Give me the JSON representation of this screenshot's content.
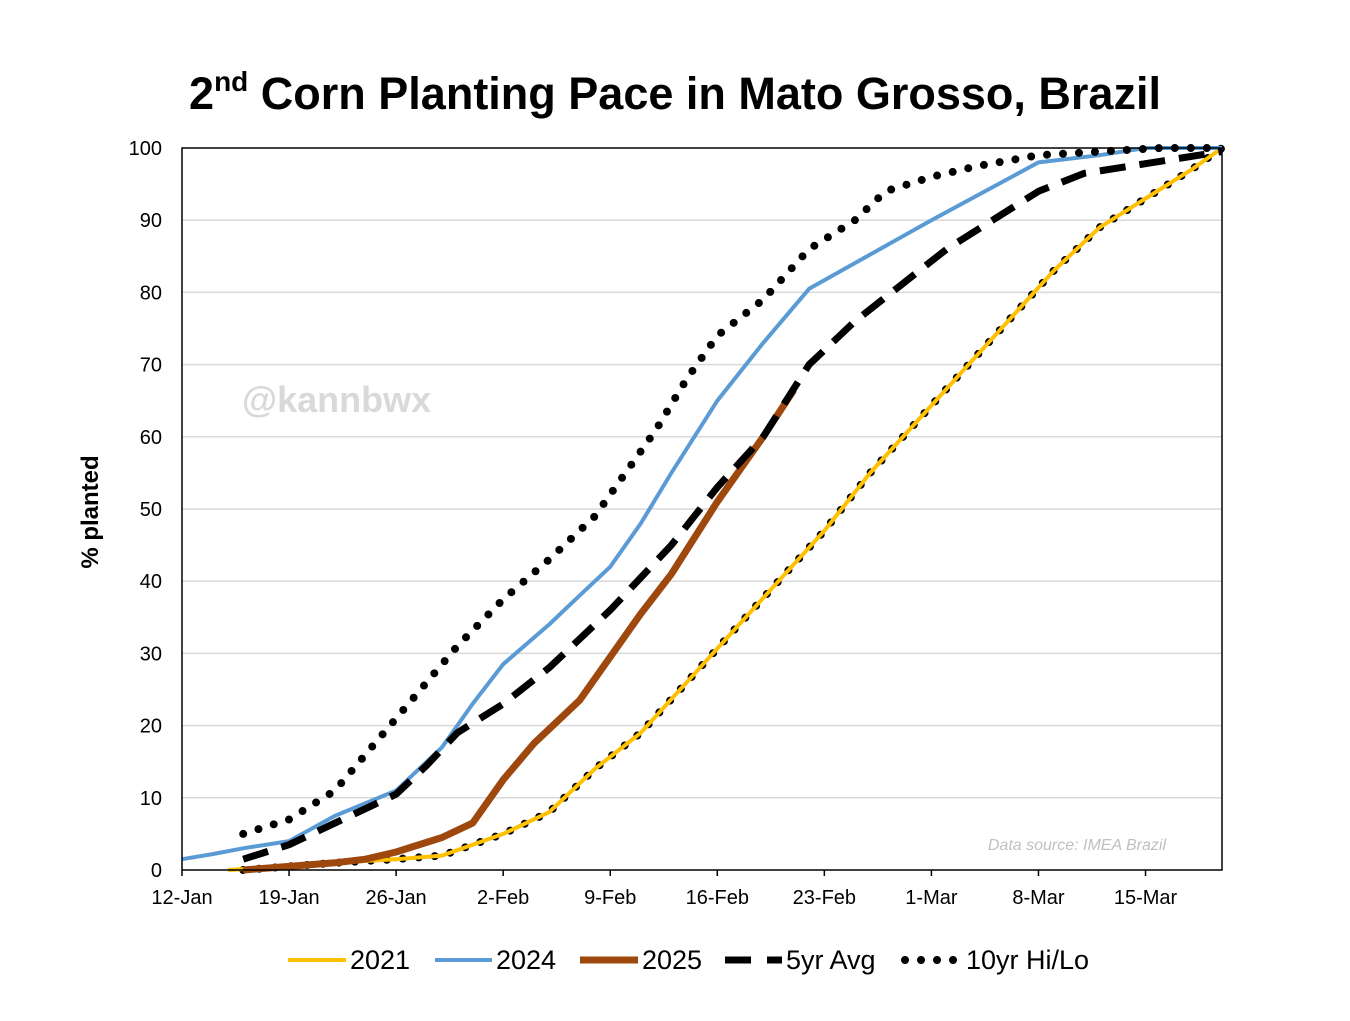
{
  "title": {
    "prefix": "2",
    "superscript": "nd",
    "rest": " Corn Planting Pace in Mato Grosso, Brazil"
  },
  "watermark": "@kannbwx",
  "source_note": "Data source: IMEA Brazil",
  "chart_data": {
    "type": "line",
    "title": "2nd Corn Planting Pace in Mato Grosso, Brazil",
    "xlabel": "",
    "ylabel": "% planted",
    "xlim": [
      0,
      68
    ],
    "ylim": [
      0,
      100
    ],
    "yticks": [
      0,
      10,
      20,
      30,
      40,
      50,
      60,
      70,
      80,
      90,
      100
    ],
    "xticks": [
      {
        "day": 0,
        "label": "12-Jan"
      },
      {
        "day": 7,
        "label": "19-Jan"
      },
      {
        "day": 14,
        "label": "26-Jan"
      },
      {
        "day": 21,
        "label": "2-Feb"
      },
      {
        "day": 28,
        "label": "9-Feb"
      },
      {
        "day": 35,
        "label": "16-Feb"
      },
      {
        "day": 42,
        "label": "23-Feb"
      },
      {
        "day": 49,
        "label": "1-Mar"
      },
      {
        "day": 56,
        "label": "8-Mar"
      },
      {
        "day": 63,
        "label": "15-Mar"
      }
    ],
    "grid": true,
    "legend_position": "bottom",
    "series": [
      {
        "name": "10yr Hi/Lo (low)",
        "legend": false,
        "style": "dotted",
        "color": "#000000",
        "points": [
          [
            4,
            0
          ],
          [
            7,
            0.5
          ],
          [
            10,
            1
          ],
          [
            14,
            1.5
          ],
          [
            17,
            2
          ],
          [
            21,
            5
          ],
          [
            24,
            8
          ],
          [
            27,
            14
          ],
          [
            30,
            19
          ],
          [
            33,
            26
          ],
          [
            36,
            33
          ],
          [
            39,
            40
          ],
          [
            42,
            47
          ],
          [
            45,
            55
          ],
          [
            48,
            62
          ],
          [
            51,
            69
          ],
          [
            54,
            76
          ],
          [
            57,
            83
          ],
          [
            60,
            89
          ],
          [
            63,
            93
          ],
          [
            66,
            97
          ],
          [
            68,
            100
          ]
        ]
      },
      {
        "name": "2021",
        "style": "solid",
        "color": "#FFC000",
        "points": [
          [
            3,
            0
          ],
          [
            7,
            0.5
          ],
          [
            10,
            1
          ],
          [
            14,
            1.5
          ],
          [
            17,
            2
          ],
          [
            21,
            5
          ],
          [
            24,
            8
          ],
          [
            27,
            14
          ],
          [
            30,
            19
          ],
          [
            33,
            26
          ],
          [
            36,
            33
          ],
          [
            39,
            40
          ],
          [
            42,
            47
          ],
          [
            45,
            55
          ],
          [
            48,
            62
          ],
          [
            51,
            69
          ],
          [
            54,
            76
          ],
          [
            57,
            83
          ],
          [
            60,
            89
          ],
          [
            63,
            93
          ],
          [
            66,
            97
          ],
          [
            68,
            100
          ]
        ]
      },
      {
        "name": "2024",
        "style": "solid",
        "color": "#5B9BD5",
        "points": [
          [
            0,
            1.5
          ],
          [
            2,
            2.2
          ],
          [
            4,
            3
          ],
          [
            7,
            4
          ],
          [
            10,
            7.5
          ],
          [
            14,
            11
          ],
          [
            17,
            17
          ],
          [
            19,
            23
          ],
          [
            21,
            28.5
          ],
          [
            24,
            34
          ],
          [
            26,
            38
          ],
          [
            28,
            42
          ],
          [
            30,
            48
          ],
          [
            32,
            55
          ],
          [
            35,
            65
          ],
          [
            38,
            73
          ],
          [
            41,
            80.5
          ],
          [
            49,
            90
          ],
          [
            56,
            98
          ],
          [
            60,
            99
          ],
          [
            63,
            100
          ],
          [
            68,
            100
          ]
        ]
      },
      {
        "name": "2025",
        "style": "solid-thick",
        "color": "#9E480E",
        "points": [
          [
            4,
            0
          ],
          [
            7,
            0.5
          ],
          [
            10,
            1
          ],
          [
            12,
            1.5
          ],
          [
            14,
            2.5
          ],
          [
            17,
            4.5
          ],
          [
            19,
            6.5
          ],
          [
            21,
            12.5
          ],
          [
            23,
            17.5
          ],
          [
            26,
            23.5
          ],
          [
            28,
            29.5
          ],
          [
            30,
            35.5
          ],
          [
            32,
            41
          ],
          [
            35,
            51
          ],
          [
            38,
            60
          ],
          [
            40,
            66.5
          ]
        ]
      },
      {
        "name": "5yr Avg",
        "style": "dashed",
        "color": "#000000",
        "points": [
          [
            4,
            1.5
          ],
          [
            7,
            3.5
          ],
          [
            10,
            6.5
          ],
          [
            14,
            10.5
          ],
          [
            16,
            14.5
          ],
          [
            18,
            19
          ],
          [
            21,
            23
          ],
          [
            24,
            28
          ],
          [
            28,
            36
          ],
          [
            32,
            45
          ],
          [
            35,
            53
          ],
          [
            38,
            60
          ],
          [
            41,
            70
          ],
          [
            44,
            76
          ],
          [
            47,
            81
          ],
          [
            50,
            86
          ],
          [
            53,
            90
          ],
          [
            56,
            94
          ],
          [
            59,
            96.5
          ],
          [
            62,
            97.5
          ],
          [
            65,
            98.5
          ],
          [
            68,
            99.5
          ]
        ]
      },
      {
        "name": "10yr Hi/Lo",
        "style": "dotted",
        "color": "#000000",
        "points": [
          [
            4,
            5
          ],
          [
            7,
            7
          ],
          [
            10,
            11
          ],
          [
            14,
            21
          ],
          [
            16,
            26
          ],
          [
            18,
            31
          ],
          [
            21,
            37.5
          ],
          [
            24,
            43
          ],
          [
            27,
            49
          ],
          [
            29,
            55
          ],
          [
            31,
            61
          ],
          [
            33,
            68
          ],
          [
            35,
            74
          ],
          [
            38,
            79
          ],
          [
            41,
            86
          ],
          [
            44,
            90
          ],
          [
            46,
            94
          ],
          [
            49,
            96
          ],
          [
            52,
            97.5
          ],
          [
            56,
            99
          ],
          [
            60,
            99.5
          ],
          [
            64,
            100
          ],
          [
            68,
            100
          ]
        ]
      }
    ]
  }
}
